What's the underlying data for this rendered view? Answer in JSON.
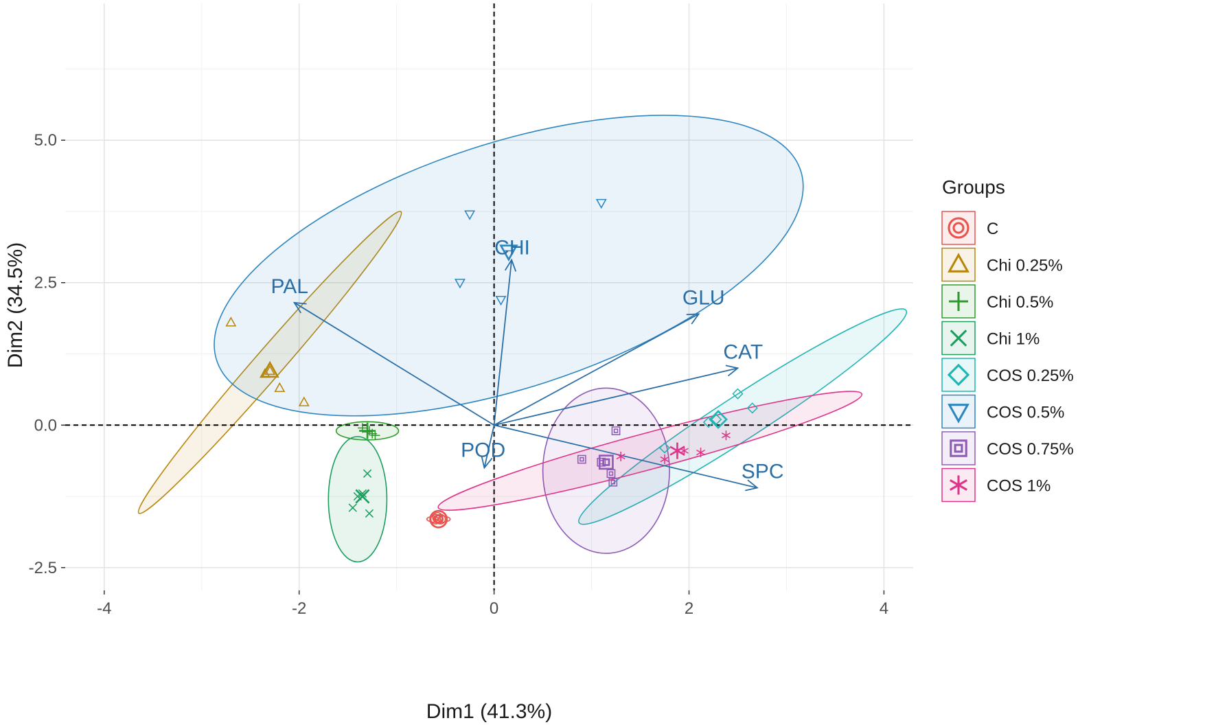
{
  "chart_data": {
    "type": "scatter",
    "subtype": "pca-biplot",
    "xlabel": "Dim1 (41.3%)",
    "ylabel": "Dim2 (34.5%)",
    "xlim": [
      -4.4,
      4.3
    ],
    "ylim": [
      -2.9,
      7.4
    ],
    "x_ticks": [
      -4,
      -2,
      0,
      2,
      4
    ],
    "x_tick_labels": [
      "-4",
      "-2",
      "0",
      "2",
      "4"
    ],
    "y_ticks": [
      -2.5,
      0,
      2.5,
      5
    ],
    "y_tick_labels": [
      "-2.5",
      "0.0",
      "2.5",
      "5.0"
    ],
    "grid": true,
    "reference_lines": {
      "x": 0,
      "y": 0,
      "style": "dashed"
    },
    "legend_title": "Groups",
    "legend_position": "right",
    "groups": [
      {
        "name": "C",
        "color": "#e8544e",
        "shape": "circle-plus",
        "points": [
          [
            -0.6,
            -1.65
          ],
          [
            -0.55,
            -1.65
          ],
          [
            -0.58,
            -1.62
          ]
        ],
        "mean": [
          -0.57,
          -1.65
        ],
        "ellipse": {
          "center": [
            -0.57,
            -1.65
          ],
          "rx": 0.12,
          "ry": 0.06,
          "angle": 0
        }
      },
      {
        "name": "Chi 0.25%",
        "color": "#b8860b",
        "shape": "triangle-up",
        "points": [
          [
            -2.7,
            1.8
          ],
          [
            -2.35,
            0.9
          ],
          [
            -2.3,
            0.95
          ],
          [
            -2.2,
            0.65
          ],
          [
            -1.95,
            0.4
          ]
        ],
        "mean": [
          -2.3,
          0.95
        ],
        "ellipse": {
          "center": [
            -2.3,
            1.1
          ],
          "rx": 2.05,
          "ry": 0.25,
          "angle": 49
        }
      },
      {
        "name": "Chi 0.5%",
        "color": "#2e9a2e",
        "shape": "plus",
        "points": [
          [
            -1.35,
            -0.05
          ],
          [
            -1.28,
            -0.1
          ],
          [
            -1.25,
            -0.15
          ],
          [
            -1.22,
            -0.18
          ],
          [
            -1.3,
            -0.12
          ]
        ],
        "mean": [
          -1.3,
          -0.1
        ],
        "ellipse": {
          "center": [
            -1.3,
            -0.1
          ],
          "rx": 0.32,
          "ry": 0.16,
          "angle": 0
        }
      },
      {
        "name": "Chi 1%",
        "color": "#1d9e5f",
        "shape": "x",
        "points": [
          [
            -1.3,
            -0.85
          ],
          [
            -1.35,
            -1.2
          ],
          [
            -1.45,
            -1.45
          ],
          [
            -1.28,
            -1.55
          ],
          [
            -1.4,
            -1.25
          ]
        ],
        "mean": [
          -1.35,
          -1.25
        ],
        "ellipse": {
          "center": [
            -1.4,
            -1.3
          ],
          "rx": 0.3,
          "ry": 1.1,
          "angle": 0
        }
      },
      {
        "name": "COS 0.25%",
        "color": "#1fb5b5",
        "shape": "diamond",
        "points": [
          [
            1.75,
            -0.4
          ],
          [
            2.2,
            0.05
          ],
          [
            2.28,
            0.1
          ],
          [
            2.5,
            0.55
          ],
          [
            2.65,
            0.3
          ]
        ],
        "mean": [
          2.3,
          0.1
        ],
        "ellipse": {
          "center": [
            2.55,
            0.15
          ],
          "rx": 2.0,
          "ry": 0.38,
          "angle": 33
        }
      },
      {
        "name": "COS 0.5%",
        "color": "#2e86c1",
        "shape": "triangle-down",
        "points": [
          [
            -0.25,
            3.7
          ],
          [
            1.1,
            3.9
          ],
          [
            -0.35,
            2.5
          ],
          [
            0.07,
            2.2
          ],
          [
            0.15,
            3.0
          ]
        ],
        "mean": [
          0.15,
          3.05
        ],
        "ellipse": {
          "center": [
            0.15,
            2.8
          ],
          "rx": 3.15,
          "ry": 2.15,
          "angle": 18
        }
      },
      {
        "name": "COS 0.75%",
        "color": "#8e5bb5",
        "shape": "square-x",
        "points": [
          [
            0.9,
            -0.6
          ],
          [
            1.1,
            -0.65
          ],
          [
            1.2,
            -0.85
          ],
          [
            1.22,
            -1.0
          ],
          [
            1.25,
            -0.1
          ]
        ],
        "mean": [
          1.15,
          -0.65
        ],
        "ellipse": {
          "center": [
            1.15,
            -0.8
          ],
          "rx": 0.65,
          "ry": 1.45,
          "angle": 0
        }
      },
      {
        "name": "COS 1%",
        "color": "#e0338a",
        "shape": "asterisk",
        "points": [
          [
            1.3,
            -0.55
          ],
          [
            1.75,
            -0.6
          ],
          [
            1.95,
            -0.45
          ],
          [
            2.12,
            -0.48
          ],
          [
            2.38,
            -0.18
          ]
        ],
        "mean": [
          1.88,
          -0.45
        ],
        "ellipse": {
          "center": [
            1.6,
            -0.45
          ],
          "rx": 2.25,
          "ry": 0.32,
          "angle": 15
        }
      }
    ],
    "variables": [
      {
        "name": "CHI",
        "x": 0.18,
        "y": 2.9
      },
      {
        "name": "PAL",
        "x": -2.05,
        "y": 2.15
      },
      {
        "name": "GLU",
        "x": 2.1,
        "y": 1.95
      },
      {
        "name": "CAT",
        "x": 2.5,
        "y": 1.0
      },
      {
        "name": "POD",
        "x": -0.1,
        "y": -0.75
      },
      {
        "name": "SPC",
        "x": 2.7,
        "y": -1.1
      }
    ],
    "arrow_color": "#2b6ea6"
  }
}
